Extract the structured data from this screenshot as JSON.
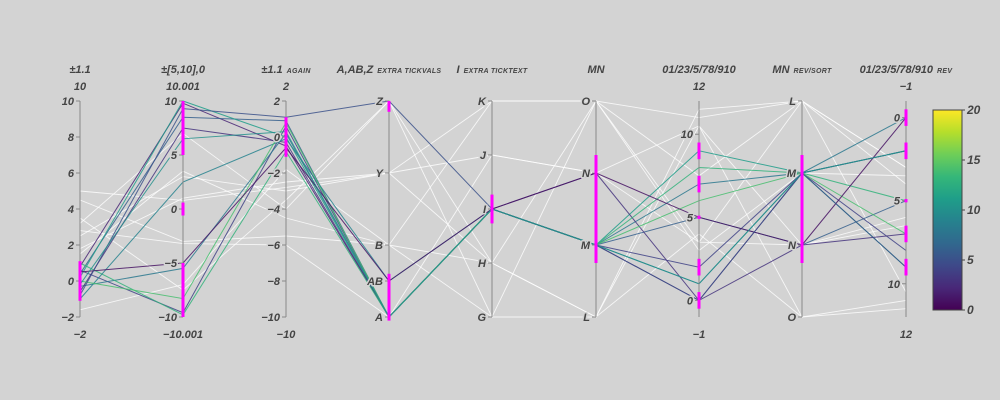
{
  "colors": {
    "background": "#d3d3d3",
    "axis": "#888888",
    "brush": "#ff00ff",
    "context_line": "#ffffff",
    "colorscale": [
      "#440154",
      "#482878",
      "#3e4989",
      "#31688e",
      "#26828e",
      "#1f9e89",
      "#35b779",
      "#6ece58",
      "#b5de2b",
      "#fde725"
    ]
  },
  "chart_data": {
    "type": "parcoords",
    "color_range": [
      0,
      20
    ],
    "colorbar_ticks": [
      "0",
      "5",
      "10",
      "15",
      "20"
    ],
    "axes": [
      {
        "name": "±1.1",
        "suffix": "",
        "range": [
          -2,
          10
        ],
        "top_label": "10",
        "bottom_label": "−2",
        "ticks": [
          {
            "v": 10,
            "t": "10"
          },
          {
            "v": 8,
            "t": "8"
          },
          {
            "v": 6,
            "t": "6"
          },
          {
            "v": 4,
            "t": "4"
          },
          {
            "v": 2,
            "t": "2"
          },
          {
            "v": 0,
            "t": "0"
          },
          {
            "v": -2,
            "t": "−2"
          }
        ],
        "brush": [
          [
            -1.1,
            1.1
          ]
        ]
      },
      {
        "name": "±[5,10],0",
        "suffix": "",
        "range": [
          -10.001,
          10.001
        ],
        "top_label": "10.001",
        "bottom_label": "−10.001",
        "ticks": [
          {
            "v": 10,
            "t": "10"
          },
          {
            "v": 5,
            "t": "5"
          },
          {
            "v": 0,
            "t": "0"
          },
          {
            "v": -5,
            "t": "−5"
          },
          {
            "v": -10,
            "t": "−10"
          }
        ],
        "brush": [
          [
            5,
            10
          ],
          [
            -0.6,
            0.6
          ],
          [
            -10,
            -5
          ]
        ]
      },
      {
        "name": "±1.1",
        "suffix": "again",
        "range": [
          -10,
          2
        ],
        "top_label": "2",
        "bottom_label": "−10",
        "ticks": [
          {
            "v": 2,
            "t": "2"
          },
          {
            "v": 0,
            "t": "0"
          },
          {
            "v": -2,
            "t": "−2"
          },
          {
            "v": -4,
            "t": "−4"
          },
          {
            "v": -6,
            "t": "−6"
          },
          {
            "v": -8,
            "t": "−8"
          },
          {
            "v": -10,
            "t": "−10"
          }
        ],
        "brush": [
          [
            -1.1,
            1.1
          ]
        ]
      },
      {
        "name": "A,AB,Z",
        "suffix": "extra tickvals",
        "range": [
          0,
          6
        ],
        "top_label": "",
        "bottom_label": "",
        "ticks": [
          {
            "v": 6,
            "t": "Z"
          },
          {
            "v": 4,
            "t": "Y"
          },
          {
            "v": 2,
            "t": "B"
          },
          {
            "v": 1,
            "t": "AB"
          },
          {
            "v": 0,
            "t": "A"
          }
        ],
        "brush": [
          [
            5.7,
            6
          ],
          [
            -0.1,
            1.2
          ]
        ]
      },
      {
        "name": "I",
        "suffix": "extra ticktext",
        "range": [
          0,
          6
        ],
        "top_label": "",
        "bottom_label": "",
        "ticks": [
          {
            "v": 6,
            "t": "K"
          },
          {
            "v": 4.5,
            "t": "J"
          },
          {
            "v": 3,
            "t": "I"
          },
          {
            "v": 1.5,
            "t": "H"
          },
          {
            "v": 0,
            "t": "G"
          }
        ],
        "brush": [
          [
            2.6,
            3.4
          ]
        ]
      },
      {
        "name": "MN",
        "suffix": "",
        "range": [
          0,
          3
        ],
        "top_label": "",
        "bottom_label": "",
        "ticks": [
          {
            "v": 3,
            "t": "O"
          },
          {
            "v": 2,
            "t": "N"
          },
          {
            "v": 1,
            "t": "M"
          },
          {
            "v": 0,
            "t": "L"
          }
        ],
        "brush": [
          [
            0.75,
            2.25
          ]
        ]
      },
      {
        "name": "01/23/5/78/910",
        "suffix": "",
        "range": [
          -1,
          12
        ],
        "top_label": "12",
        "bottom_label": "−1",
        "ticks": [
          {
            "v": 10,
            "t": "10"
          },
          {
            "v": 5,
            "t": "5"
          },
          {
            "v": 0,
            "t": "0"
          }
        ],
        "brush": [
          [
            -0.5,
            0.5
          ],
          [
            1.5,
            2.5
          ],
          [
            4.9,
            5.1
          ],
          [
            6.5,
            7.5
          ],
          [
            8.5,
            9.5
          ]
        ]
      },
      {
        "name": "MN",
        "suffix": "rev/sort",
        "range": [
          0,
          3
        ],
        "top_label": "",
        "bottom_label": "",
        "ticks": [
          {
            "v": 3,
            "t": "L"
          },
          {
            "v": 2,
            "t": "M"
          },
          {
            "v": 1,
            "t": "N"
          },
          {
            "v": 0,
            "t": "O"
          }
        ],
        "brush": [
          [
            0.75,
            2.25
          ]
        ]
      },
      {
        "name": "01/23/5/78/910",
        "suffix": "rev",
        "range": [
          12,
          -1
        ],
        "top_label": "−1",
        "bottom_label": "12",
        "ticks": [
          {
            "v": 0,
            "t": "0"
          },
          {
            "v": 5,
            "t": "5"
          },
          {
            "v": 10,
            "t": "10"
          }
        ],
        "brush": [
          [
            -0.5,
            0.5
          ],
          [
            1.5,
            2.5
          ],
          [
            4.9,
            5.1
          ],
          [
            6.5,
            7.5
          ],
          [
            8.5,
            9.5
          ]
        ]
      }
    ],
    "lines": [
      {
        "c": 2,
        "v": [
          0.8,
          9.8,
          -0.5,
          0,
          3,
          1,
          0,
          2,
          2
        ]
      },
      {
        "c": 4,
        "v": [
          0.6,
          -9.6,
          0.6,
          0,
          3,
          1,
          2,
          2,
          8
        ]
      },
      {
        "c": 6,
        "v": [
          0.4,
          8.5,
          0.9,
          0,
          3,
          1,
          5,
          1,
          5
        ]
      },
      {
        "c": 8,
        "v": [
          -0.3,
          -5.5,
          0.2,
          0,
          3,
          1,
          7,
          2,
          0
        ]
      },
      {
        "c": 11,
        "v": [
          0.2,
          10,
          0,
          0,
          3,
          1,
          9,
          2,
          9
        ]
      },
      {
        "c": 3,
        "v": [
          -0.6,
          7.5,
          -0.3,
          0,
          3,
          2,
          0,
          1,
          7
        ]
      },
      {
        "c": 13,
        "v": [
          1.0,
          -9.8,
          -0.8,
          0,
          3,
          1,
          8,
          2,
          5
        ]
      },
      {
        "c": 9,
        "v": [
          -1.0,
          2.5,
          -0.1,
          1,
          3,
          1,
          1,
          2,
          2
        ]
      },
      {
        "c": 14,
        "v": [
          0.0,
          -8.3,
          0.8,
          0,
          3,
          1,
          6,
          2,
          7
        ]
      },
      {
        "c": 1,
        "v": [
          0.5,
          -5,
          -0.6,
          1,
          3,
          2,
          5,
          1,
          0
        ]
      },
      {
        "c": 5,
        "v": [
          -0.8,
          9.3,
          1.1,
          6,
          3,
          1,
          0,
          2,
          9
        ]
      },
      {
        "c": 10,
        "v": [
          -0.2,
          6.5,
          0.3,
          0,
          3,
          1,
          1,
          2,
          2
        ]
      }
    ],
    "context_lines": [
      [
        2.5,
        3,
        -3,
        4,
        6,
        3,
        7.5,
        3,
        3
      ],
      [
        4.5,
        -3,
        -5.5,
        2,
        1.5,
        0,
        10.5,
        0,
        11
      ],
      [
        1.8,
        1,
        -2.5,
        4,
        4.5,
        2,
        3.5,
        1,
        6
      ],
      [
        3.5,
        -7.5,
        -3.5,
        6,
        0,
        0,
        11.5,
        3,
        10.5
      ],
      [
        1.5,
        3.5,
        -4.5,
        2,
        6,
        3,
        3,
        2,
        3.5
      ],
      [
        5,
        0.8,
        -2.8,
        4,
        1.5,
        0,
        4,
        0,
        11.5
      ],
      [
        -1.6,
        -7,
        -1.8,
        2,
        0,
        3,
        3.5,
        3,
        4
      ],
      [
        2.8,
        -3.2,
        -6,
        0,
        4.5,
        2,
        10.5,
        1,
        6.5
      ],
      [
        3.2,
        7,
        -4,
        6,
        1.5,
        3,
        11,
        3,
        3
      ]
    ]
  }
}
